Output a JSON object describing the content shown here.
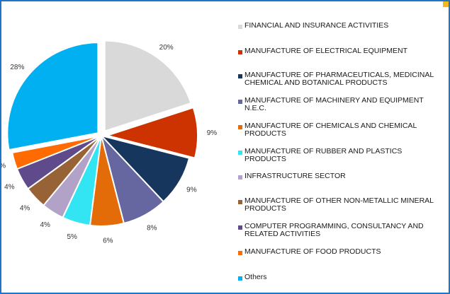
{
  "chart_data": {
    "type": "pie",
    "slices": [
      {
        "label": "FINANCIAL AND INSURANCE ACTIVITIES",
        "value": 20,
        "value_label": "20%",
        "color": "#d9d9d9"
      },
      {
        "label": "MANUFACTURE OF ELECTRICAL EQUIPMENT",
        "value": 9,
        "value_label": "9%",
        "color": "#cc3300"
      },
      {
        "label": "MANUFACTURE OF PHARMACEUTICALS, MEDICINAL CHEMICAL AND BOTANICAL PRODUCTS",
        "value": 9,
        "value_label": "9%",
        "color": "#17365d"
      },
      {
        "label": "MANUFACTURE OF MACHINERY AND EQUIPMENT N.E.C.",
        "value": 8,
        "value_label": "8%",
        "color": "#6666a0"
      },
      {
        "label": "MANUFACTURE OF CHEMICALS AND CHEMICAL PRODUCTS",
        "value": 6,
        "value_label": "6%",
        "color": "#e36c09"
      },
      {
        "label": "MANUFACTURE OF RUBBER AND PLASTICS PRODUCTS",
        "value": 5,
        "value_label": "5%",
        "color": "#33e5f2"
      },
      {
        "label": "INFRASTRUCTURE SECTOR",
        "value": 4,
        "value_label": "4%",
        "color": "#b3a2c7"
      },
      {
        "label": "MANUFACTURE OF OTHER NON-METALLIC MINERAL PRODUCTS",
        "value": 4,
        "value_label": "4%",
        "color": "#976236"
      },
      {
        "label": "COMPUTER PROGRAMMING, CONSULTANCY AND RELATED ACTIVITIES",
        "value": 4,
        "value_label": "4%",
        "color": "#5f4a8b"
      },
      {
        "label": "MANUFACTURE OF FOOD PRODUCTS",
        "value": 3,
        "value_label": "3%",
        "color": "#ff6b00"
      },
      {
        "label": "Others",
        "value": 28,
        "value_label": "28%",
        "color": "#00b0f0"
      }
    ],
    "legend_position": "right",
    "exploded_slices": [
      "FINANCIAL AND INSURANCE ACTIVITIES",
      "MANUFACTURE OF ELECTRICAL EQUIPMENT",
      "Others"
    ]
  },
  "colors": {
    "frame_border": "#1f74c6",
    "corner_accent": "#f2b820"
  }
}
